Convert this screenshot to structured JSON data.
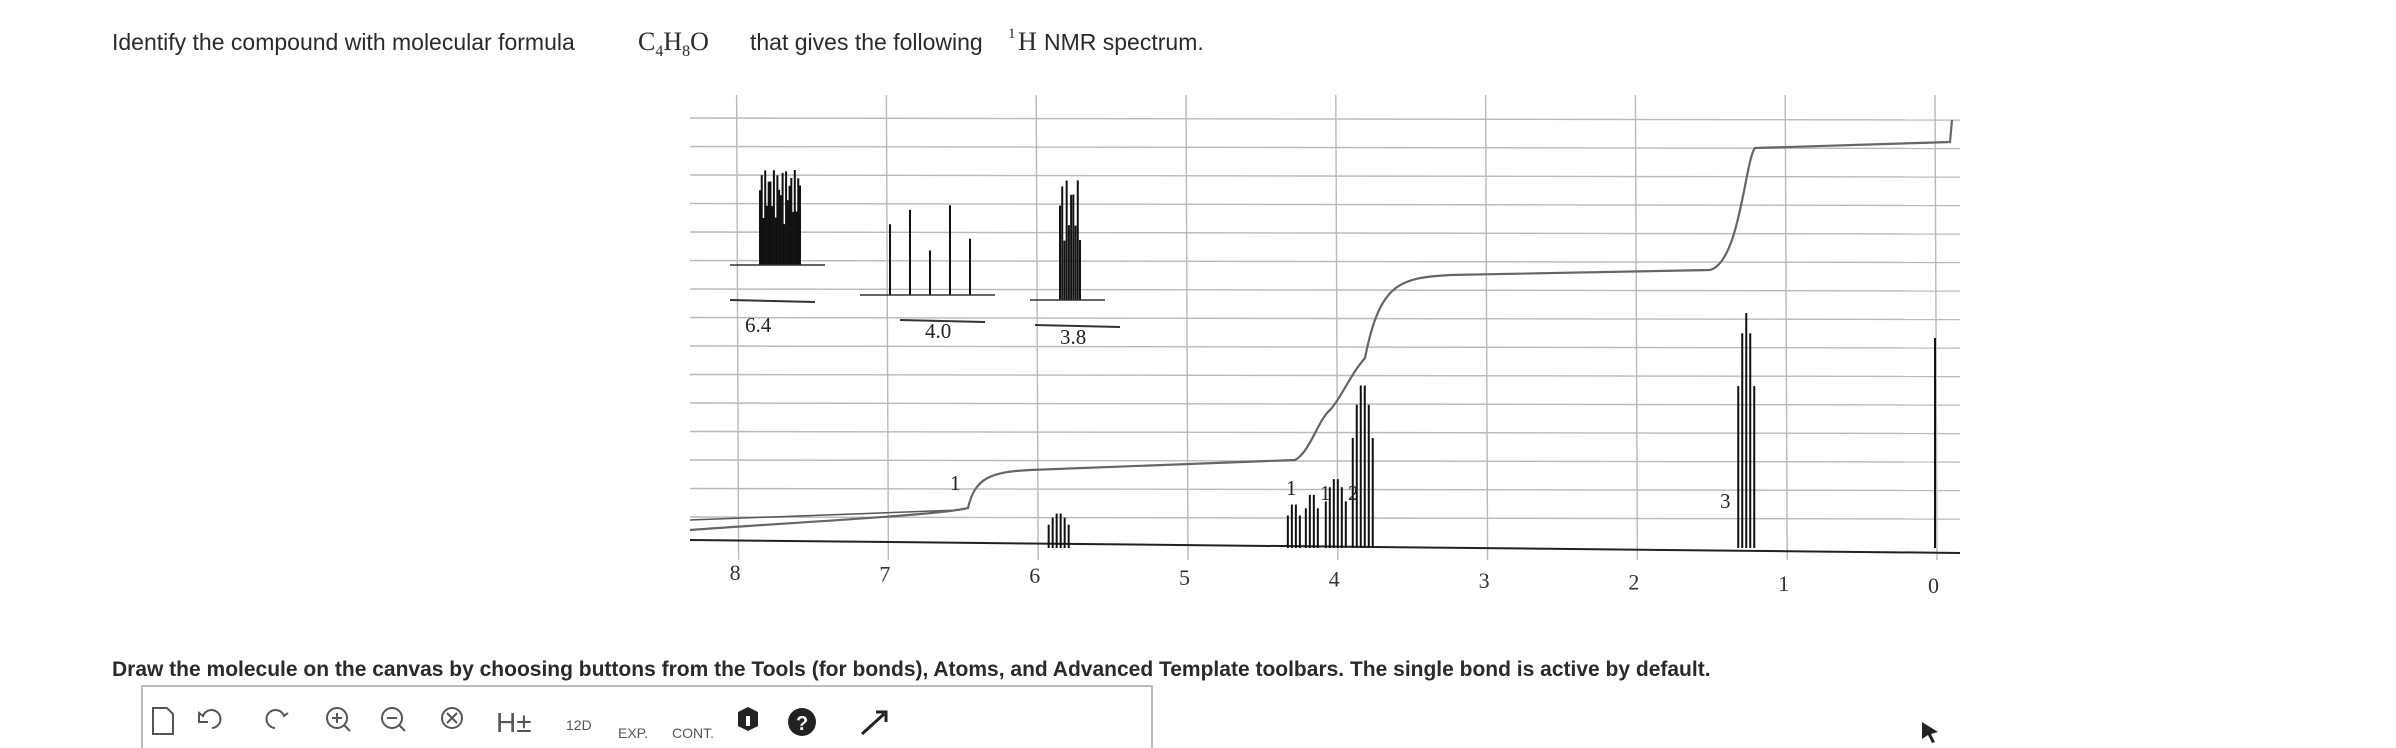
{
  "question": {
    "before": "Identify the compound with molecular formula",
    "formula": [
      "C",
      "4",
      "H",
      "8",
      "O"
    ],
    "after": "that gives the following",
    "nucleus_mass": "1",
    "nucleus": "H",
    "end": "NMR spectrum."
  },
  "spectrum": {
    "axis_labels": [
      "8",
      "7",
      "6",
      "5",
      "4",
      "3",
      "2",
      "1",
      "0"
    ],
    "integrations": [
      "1",
      "1",
      "1",
      "2",
      "3"
    ],
    "inset_labels": [
      "6.4",
      "4.0",
      "3.8"
    ]
  },
  "instruction": "Draw the molecule on the canvas by choosing buttons from the Tools (for bonds), Atoms, and Advanced Template toolbars. The single bond is active by default.",
  "toolbar": {
    "labels": [
      "H±",
      "12D",
      "EXP.",
      "CONT."
    ]
  }
}
